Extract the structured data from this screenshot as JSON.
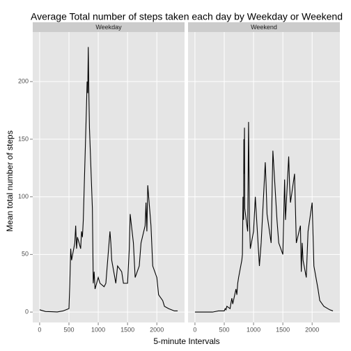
{
  "chart_data": {
    "type": "line",
    "title": "Average Total number of steps taken each day by Weekday or Weekend",
    "xlabel": "5-minute Intervals",
    "ylabel": "Mean total number of steps",
    "x": [
      0,
      100,
      200,
      300,
      400,
      500,
      515,
      530,
      545,
      600,
      615,
      630,
      645,
      700,
      715,
      730,
      745,
      800,
      810,
      820,
      830,
      835,
      840,
      845,
      850,
      900,
      915,
      930,
      945,
      1000,
      1030,
      1100,
      1130,
      1200,
      1215,
      1230,
      1300,
      1330,
      1400,
      1430,
      1500,
      1530,
      1545,
      1600,
      1615,
      1630,
      1700,
      1730,
      1800,
      1815,
      1830,
      1845,
      1900,
      1930,
      2000,
      2030,
      2100,
      2130,
      2200,
      2300,
      2355
    ],
    "series": [
      {
        "name": "Weekday",
        "color": "#000000",
        "values": [
          2,
          0.5,
          0.3,
          0.1,
          1,
          3,
          25,
          55,
          45,
          60,
          75,
          55,
          65,
          55,
          70,
          65,
          80,
          180,
          200,
          190,
          230,
          210,
          190,
          175,
          160,
          90,
          25,
          35,
          20,
          30,
          25,
          22,
          25,
          70,
          60,
          45,
          25,
          40,
          35,
          25,
          25,
          55,
          85,
          60,
          45,
          30,
          40,
          60,
          75,
          95,
          70,
          110,
          75,
          40,
          30,
          15,
          10,
          5,
          3,
          1,
          1
        ]
      },
      {
        "name": "Weekend",
        "color": "#000000",
        "values": [
          0,
          0,
          0,
          0,
          1,
          1,
          3,
          2,
          5,
          3,
          8,
          12,
          7,
          20,
          15,
          25,
          30,
          45,
          50,
          100,
          80,
          150,
          120,
          160,
          90,
          70,
          165,
          80,
          55,
          70,
          100,
          40,
          60,
          130,
          110,
          85,
          60,
          140,
          80,
          60,
          50,
          115,
          80,
          135,
          110,
          95,
          120,
          60,
          75,
          35,
          60,
          45,
          30,
          70,
          95,
          40,
          20,
          10,
          5,
          2,
          1
        ]
      }
    ],
    "xlim": [
      -118,
      2473
    ],
    "ylim": [
      -9,
      243
    ],
    "xticks": [
      0,
      500,
      1000,
      1500,
      2000
    ],
    "yticks": [
      0,
      50,
      100,
      150,
      200
    ],
    "grid": true
  }
}
